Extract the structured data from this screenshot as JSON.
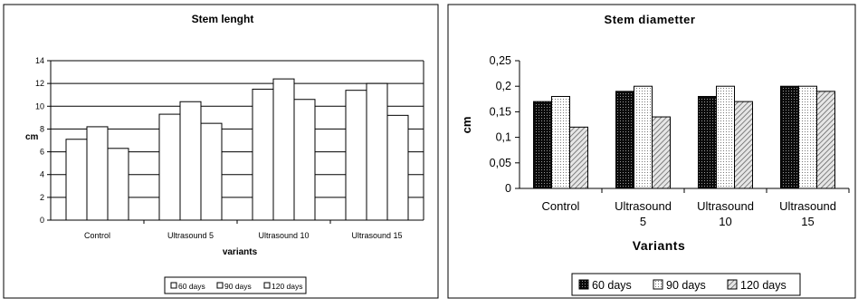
{
  "chart_data": [
    {
      "type": "bar",
      "title": "Stem lenght",
      "xlabel": "variants",
      "ylabel": "cm",
      "categories": [
        "Control",
        "Ultrasound  5",
        "Ultrasound  10",
        "Ultrasound  15"
      ],
      "series": [
        {
          "name": "60 days",
          "values": [
            7.1,
            9.3,
            11.5,
            11.4
          ],
          "fill": "white"
        },
        {
          "name": "90 days",
          "values": [
            8.2,
            10.4,
            12.4,
            12.0
          ],
          "fill": "white"
        },
        {
          "name": "120 days",
          "values": [
            6.3,
            8.5,
            10.6,
            9.2
          ],
          "fill": "white"
        }
      ],
      "ylim": [
        0,
        14
      ],
      "yticks": [
        "0",
        "2",
        "4",
        "6",
        "8",
        "10",
        "12",
        "14"
      ],
      "grid": true,
      "legend": "bottom"
    },
    {
      "type": "bar",
      "title": "Stem diametter",
      "xlabel": "Variants",
      "ylabel": "cm",
      "categories": [
        [
          "Control"
        ],
        [
          "Ultrasound",
          "5"
        ],
        [
          "Ultrasound",
          "10"
        ],
        [
          "Ultrasound",
          "15"
        ]
      ],
      "series": [
        {
          "name": "60 days",
          "values": [
            0.17,
            0.19,
            0.18,
            0.2
          ],
          "fill": "dark-dotted"
        },
        {
          "name": "90 days",
          "values": [
            0.18,
            0.2,
            0.2,
            0.2
          ],
          "fill": "light-dotted"
        },
        {
          "name": "120 days",
          "values": [
            0.12,
            0.14,
            0.17,
            0.19
          ],
          "fill": "hatched"
        }
      ],
      "ylim": [
        0,
        0.25
      ],
      "yticks": [
        "0",
        "0,05",
        "0,1",
        "0,15",
        "0,2",
        "0,25"
      ],
      "grid": false,
      "legend": "bottom"
    }
  ]
}
